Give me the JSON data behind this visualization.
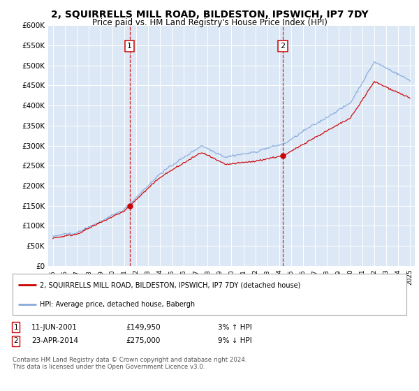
{
  "title": "2, SQUIRRELLS MILL ROAD, BILDESTON, IPSWICH, IP7 7DY",
  "subtitle": "Price paid vs. HM Land Registry's House Price Index (HPI)",
  "legend_line1": "2, SQUIRRELLS MILL ROAD, BILDESTON, IPSWICH, IP7 7DY (detached house)",
  "legend_line2": "HPI: Average price, detached house, Babergh",
  "annotation1_label": "1",
  "annotation1_date": "11-JUN-2001",
  "annotation1_price": "£149,950",
  "annotation1_hpi": "3% ↑ HPI",
  "annotation2_label": "2",
  "annotation2_date": "23-APR-2014",
  "annotation2_price": "£275,000",
  "annotation2_hpi": "9% ↓ HPI",
  "footer": "Contains HM Land Registry data © Crown copyright and database right 2024.\nThis data is licensed under the Open Government Licence v3.0.",
  "sale1_year": 2001.45,
  "sale1_value": 149950,
  "sale2_year": 2014.31,
  "sale2_value": 275000,
  "hpi_color": "#88aadd",
  "price_color": "#cc0000",
  "dashed_line_color": "#cc0000",
  "plot_bg_color": "#dce8f5",
  "ylim": [
    0,
    600000
  ],
  "yticks": [
    0,
    50000,
    100000,
    150000,
    200000,
    250000,
    300000,
    350000,
    400000,
    450000,
    500000,
    550000,
    600000
  ],
  "xlim_start": 1994.6,
  "xlim_end": 2025.4
}
